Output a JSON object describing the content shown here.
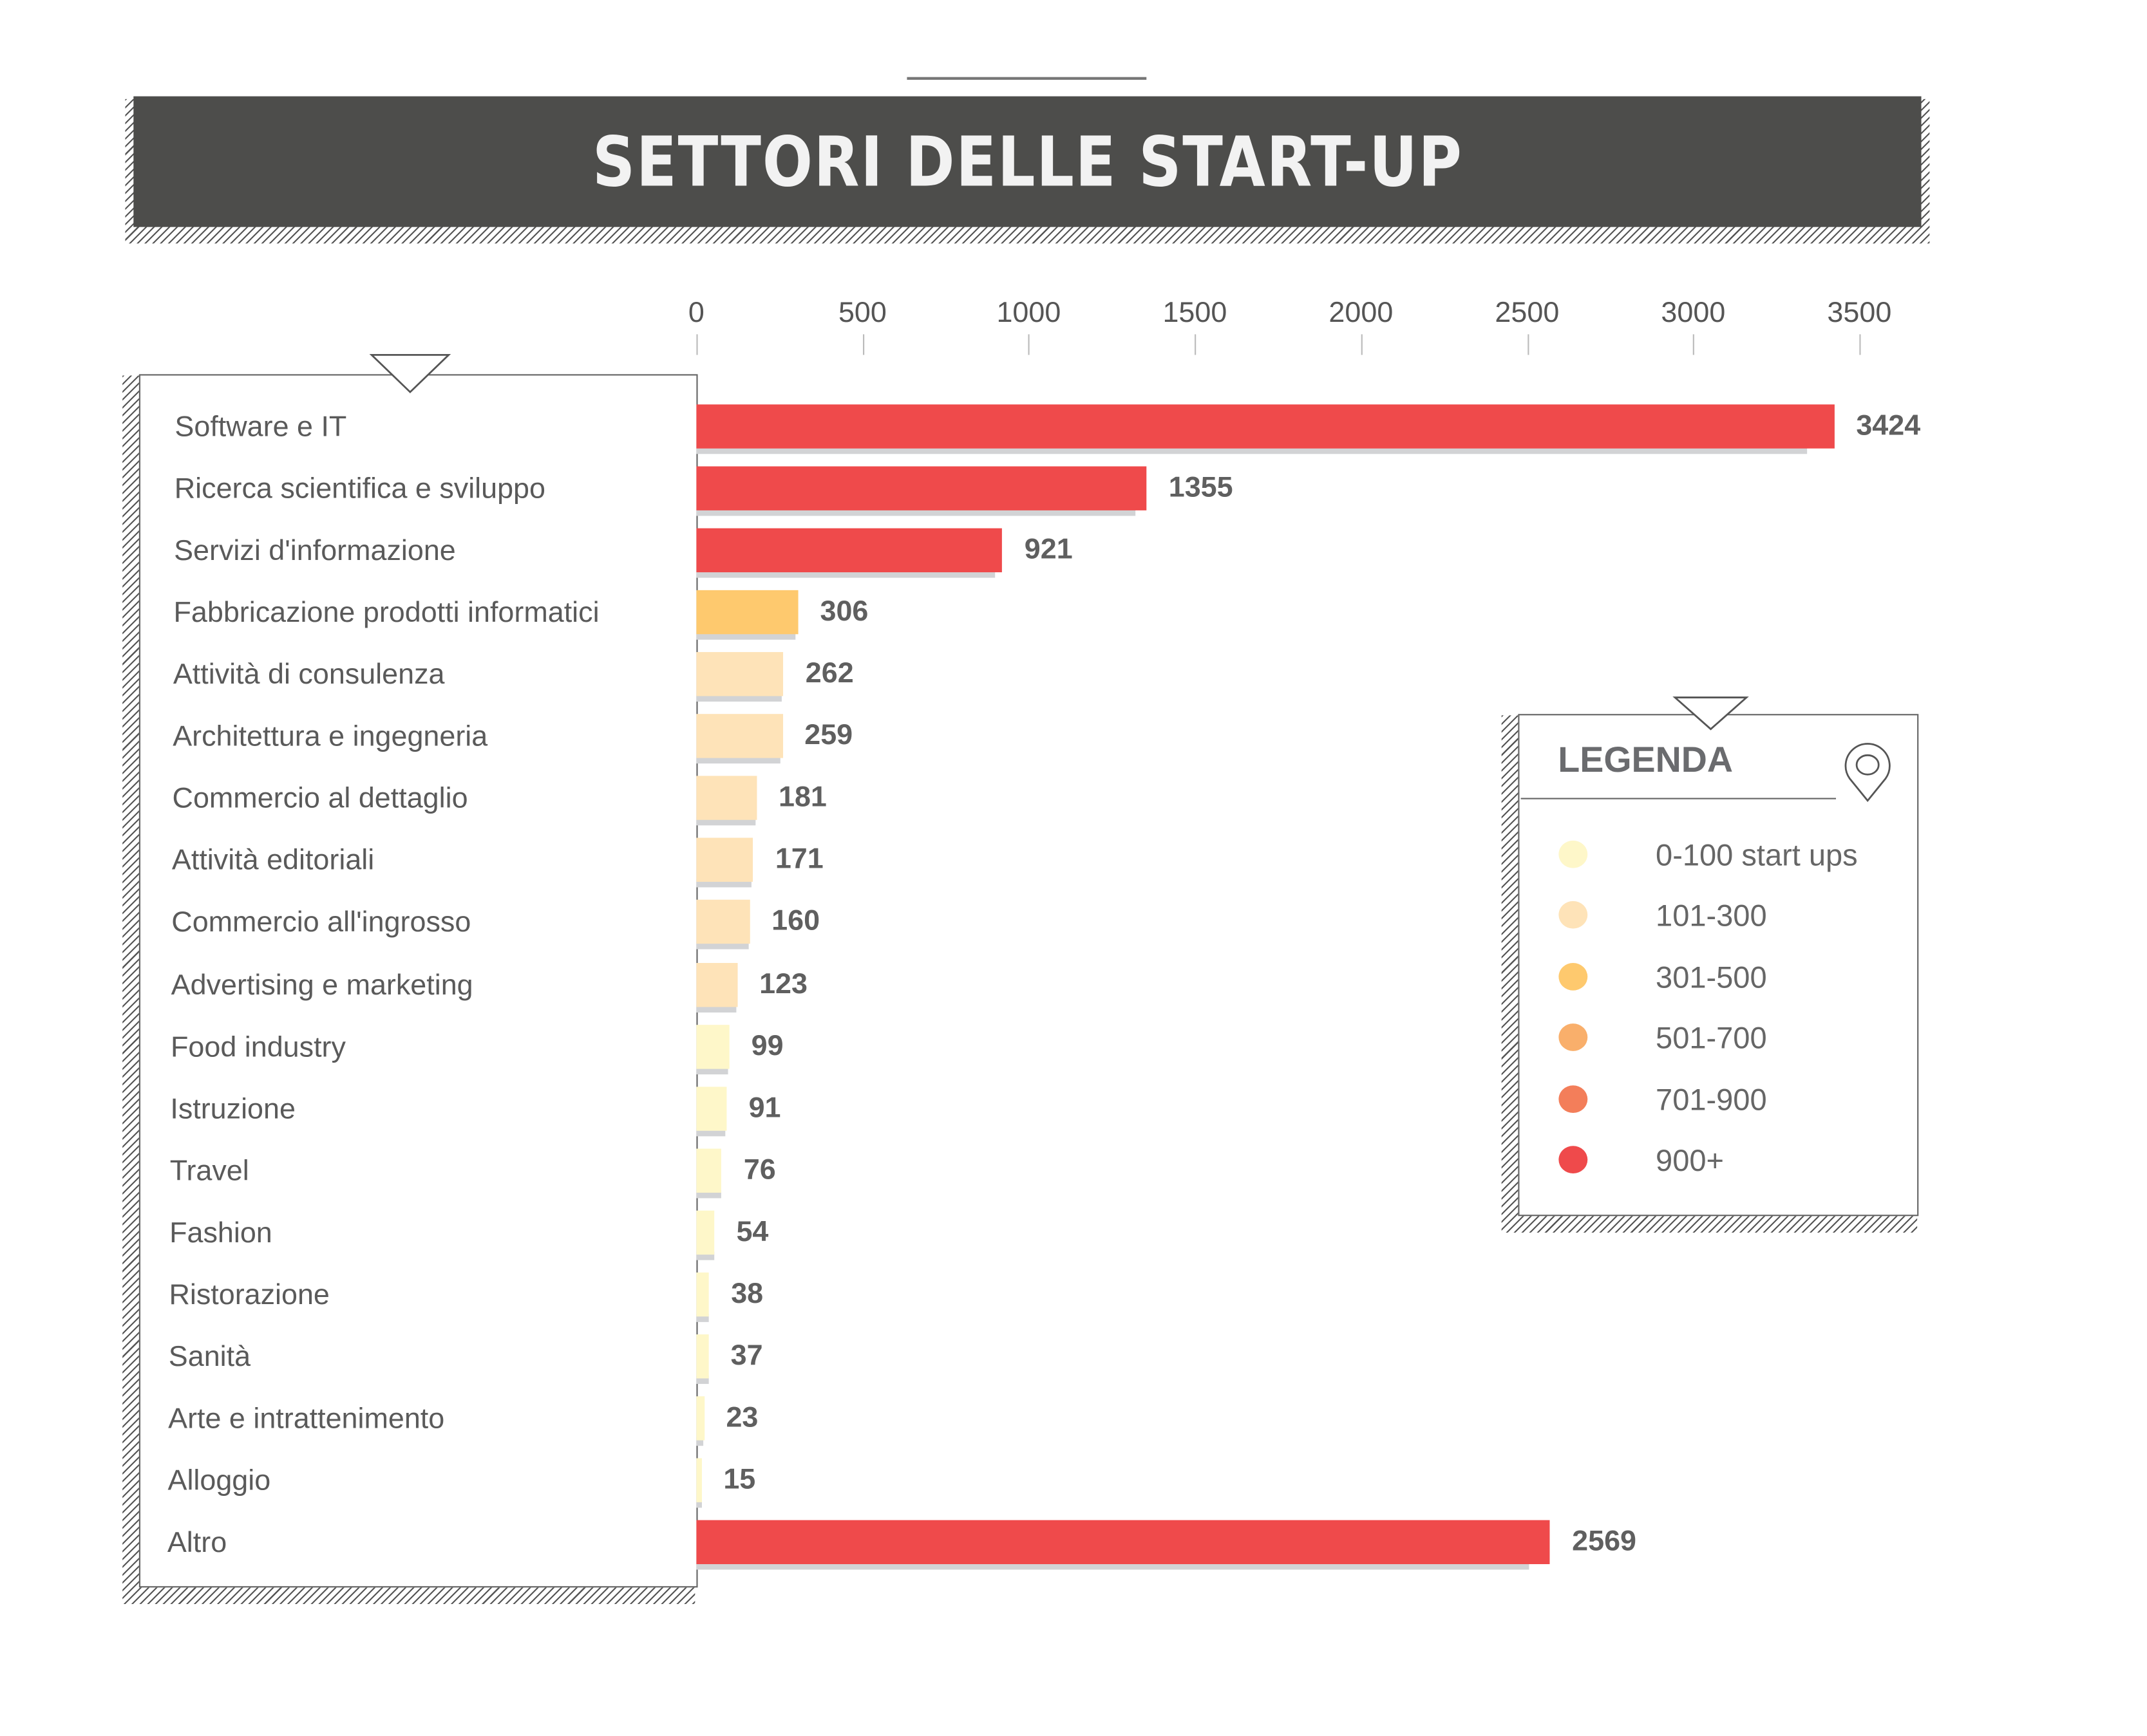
{
  "chart_data": {
    "type": "bar",
    "orientation": "horizontal",
    "title": "SETTORI DELLE START-UP",
    "categories": [
      "Software e IT",
      "Ricerca scientifica e sviluppo",
      "Servizi d'informazione",
      "Fabbricazione prodotti informatici",
      "Attività di consulenza",
      "Architettura e ingegneria",
      "Commercio al dettaglio",
      "Attività editoriali",
      "Commercio all'ingrosso",
      "Advertising e marketing",
      "Food industry",
      "Istruzione",
      "Travel",
      "Fashion",
      "Ristorazione",
      "Sanità",
      "Arte e intrattenimento",
      "Alloggio",
      "Altro"
    ],
    "values": [
      3424,
      1355,
      921,
      306,
      262,
      259,
      181,
      171,
      160,
      123,
      99,
      91,
      76,
      54,
      38,
      37,
      23,
      15,
      2569
    ],
    "xlim": [
      0,
      3500
    ],
    "xticks": [
      "0",
      "500",
      "1000",
      "1500",
      "2000",
      "2500",
      "3000",
      "3500"
    ],
    "xlabel": "",
    "ylabel": "",
    "grid": false,
    "legend": {
      "title": "LEGENDA",
      "placement": "right",
      "icon": "map-pin-icon",
      "items": [
        {
          "label": "0-100 start ups",
          "color": "#fef7c9"
        },
        {
          "label": "101-300",
          "color": "#fee3b8"
        },
        {
          "label": "301-500",
          "color": "#fec96e"
        },
        {
          "label": "501-700",
          "color": "#f9af6b"
        },
        {
          "label": "701-900",
          "color": "#f37e5a"
        },
        {
          "label": "900+",
          "color": "#ef4a4b"
        }
      ]
    }
  }
}
